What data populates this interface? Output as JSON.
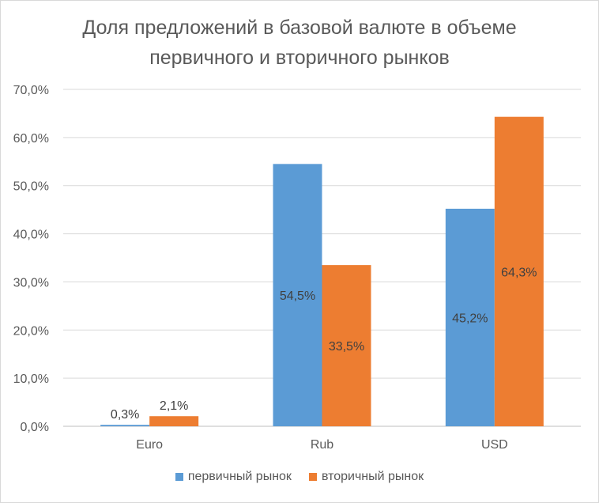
{
  "chart_data": {
    "type": "bar",
    "title_line1": "Доля предложений в базовой валюте в объеме",
    "title_line2": "первичного и вторичного рынков",
    "categories": [
      "Euro",
      "Rub",
      "USD"
    ],
    "series": [
      {
        "name": "первичный рынок",
        "color": "#5b9bd5",
        "values": [
          0.3,
          54.5,
          45.2
        ],
        "labels": [
          "0,3%",
          "54,5%",
          "45,2%"
        ]
      },
      {
        "name": "вторичный рынок",
        "color": "#ed7d31",
        "values": [
          2.1,
          33.5,
          64.3
        ],
        "labels": [
          "2,1%",
          "33,5%",
          "64,3%"
        ]
      }
    ],
    "ylim": [
      0,
      70
    ],
    "yticks": [
      "0,0%",
      "10,0%",
      "20,0%",
      "30,0%",
      "40,0%",
      "50,0%",
      "60,0%",
      "70,0%"
    ],
    "grid": true,
    "legend_position": "bottom"
  }
}
